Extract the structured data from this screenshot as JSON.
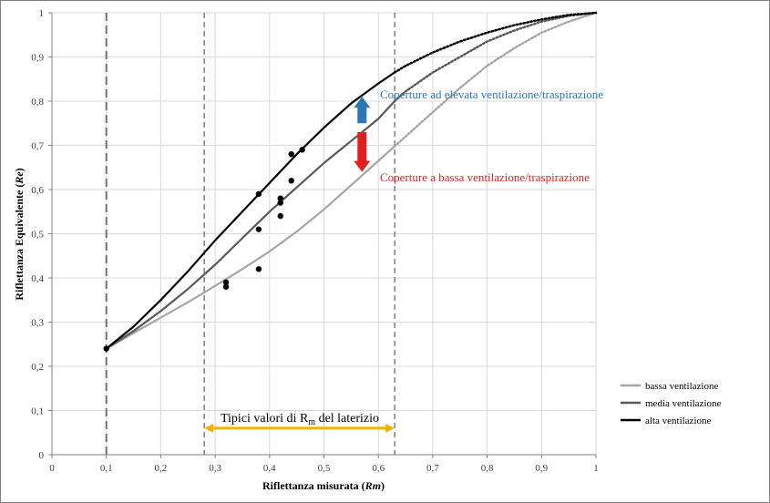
{
  "chart_data": {
    "type": "line",
    "xlabel_main": "Riflettanza misurata (",
    "xlabel_var": "Rm",
    "xlabel_close": ")",
    "ylabel_main": "Riflettanza Equivalente (",
    "ylabel_var": "Re",
    "ylabel_close": ")",
    "xlim": [
      0,
      1
    ],
    "ylim": [
      0,
      1
    ],
    "x_ticks": [
      "0",
      "0,1",
      "0,2",
      "0,3",
      "0,4",
      "0,5",
      "0,6",
      "0,7",
      "0,8",
      "0,9",
      "1"
    ],
    "y_ticks": [
      "0",
      "0,1",
      "0,2",
      "0,3",
      "0,4",
      "0,5",
      "0,6",
      "0,7",
      "0,8",
      "0,9",
      "1"
    ],
    "grid": true,
    "legend_position": "bottom-right",
    "series": [
      {
        "name": "bassa ventilazione",
        "color": "#a6a6a6",
        "solid_end_x": 0.63,
        "x": [
          0.1,
          0.15,
          0.2,
          0.25,
          0.3,
          0.35,
          0.4,
          0.45,
          0.5,
          0.55,
          0.6,
          0.63,
          0.65,
          0.7,
          0.75,
          0.8,
          0.85,
          0.9,
          0.95,
          1.0
        ],
        "y": [
          0.24,
          0.275,
          0.31,
          0.345,
          0.382,
          0.42,
          0.46,
          0.505,
          0.555,
          0.61,
          0.665,
          0.698,
          0.72,
          0.775,
          0.83,
          0.88,
          0.92,
          0.955,
          0.98,
          1.0
        ]
      },
      {
        "name": "media ventilazione",
        "color": "#595959",
        "solid_end_x": 0.63,
        "x": [
          0.1,
          0.15,
          0.2,
          0.25,
          0.3,
          0.35,
          0.4,
          0.45,
          0.5,
          0.55,
          0.6,
          0.63,
          0.65,
          0.7,
          0.75,
          0.8,
          0.85,
          0.9,
          0.95,
          1.0
        ],
        "y": [
          0.24,
          0.28,
          0.325,
          0.375,
          0.43,
          0.49,
          0.55,
          0.605,
          0.66,
          0.71,
          0.76,
          0.8,
          0.822,
          0.865,
          0.9,
          0.935,
          0.96,
          0.98,
          0.993,
          1.0
        ]
      },
      {
        "name": "alta ventilazione",
        "color": "#000000",
        "solid_end_x": 0.63,
        "x": [
          0.1,
          0.15,
          0.2,
          0.25,
          0.3,
          0.35,
          0.4,
          0.45,
          0.5,
          0.55,
          0.6,
          0.63,
          0.65,
          0.7,
          0.75,
          0.8,
          0.85,
          0.9,
          0.95,
          1.0
        ],
        "y": [
          0.24,
          0.29,
          0.35,
          0.415,
          0.485,
          0.55,
          0.615,
          0.68,
          0.74,
          0.795,
          0.84,
          0.865,
          0.88,
          0.91,
          0.935,
          0.955,
          0.972,
          0.985,
          0.995,
          1.0
        ]
      }
    ],
    "points": [
      {
        "x": 0.1,
        "y": 0.24
      },
      {
        "x": 0.32,
        "y": 0.39
      },
      {
        "x": 0.32,
        "y": 0.38
      },
      {
        "x": 0.38,
        "y": 0.59
      },
      {
        "x": 0.38,
        "y": 0.51
      },
      {
        "x": 0.38,
        "y": 0.42
      },
      {
        "x": 0.42,
        "y": 0.58
      },
      {
        "x": 0.42,
        "y": 0.57
      },
      {
        "x": 0.42,
        "y": 0.54
      },
      {
        "x": 0.44,
        "y": 0.68
      },
      {
        "x": 0.44,
        "y": 0.62
      },
      {
        "x": 0.46,
        "y": 0.69
      }
    ],
    "vertical_dashed_lines": [
      0.1,
      0.28,
      0.63
    ],
    "range_arrow": {
      "from": 0.28,
      "to": 0.63,
      "y": 0.06,
      "color": "#f0b400"
    },
    "range_label_prefix": "Tipici valori di R",
    "range_label_sub": "m",
    "range_label_suffix": " del laterizio",
    "annotation_high": {
      "text": "Coperture ad elevata ventilazione/traspirazione",
      "color": "#2e75b6",
      "x": 0.57,
      "y": 0.81
    },
    "annotation_low": {
      "text": "Coperture a bassa ventilazione/traspirazione",
      "color": "#e02020",
      "x": 0.57,
      "y": 0.63
    },
    "arrow_up": {
      "x": 0.57,
      "y_from": 0.75,
      "y_to": 0.81,
      "color": "#2e75b6"
    },
    "arrow_down": {
      "x": 0.57,
      "y_from": 0.73,
      "y_to": 0.64,
      "color": "#e02020"
    }
  }
}
